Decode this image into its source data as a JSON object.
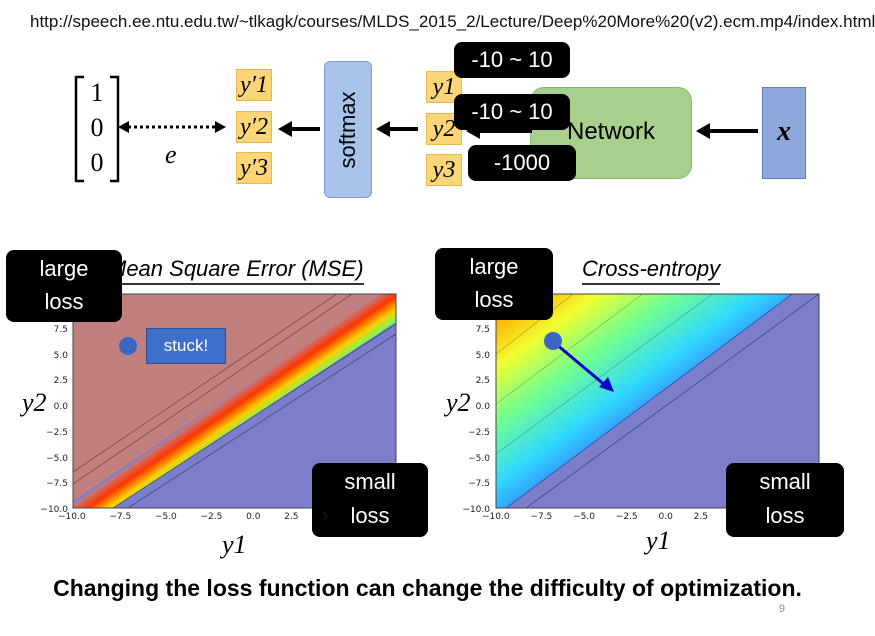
{
  "url": "http://speech.ee.ntu.edu.tw/~tlkagk/courses/MLDS_2015_2/Lecture/Deep%20More%20(v2).ecm.mp4/index.html",
  "diagram": {
    "target_vector": [
      "1",
      "0",
      "0"
    ],
    "error_label": "e",
    "y_prime": [
      "y′1",
      "y′2",
      "y′3"
    ],
    "softmax_label": "softmax",
    "y_outputs": [
      "y1",
      "y2",
      "y3"
    ],
    "network_label": "Network",
    "input_label": "x",
    "range_labels": [
      "-10 ~ 10",
      "-10 ~ 10",
      "-1000"
    ]
  },
  "plots": {
    "mse": {
      "title": "Mean Square Error (MSE)",
      "large_loss_label": [
        "large",
        "loss"
      ],
      "small_loss_label": [
        "small",
        "loss"
      ],
      "stuck_label": "stuck!",
      "y_axis_label": "y2",
      "x_axis_label": "y1",
      "y_ticks": [
        "7.5",
        "5.0",
        "2.5",
        "0.0",
        "−2.5",
        "−5.0",
        "−7.5",
        "−10.0"
      ],
      "x_ticks": [
        "−10.0",
        "−7.5",
        "−5.0",
        "−2.5",
        "0.0",
        "2.5",
        "5"
      ]
    },
    "ce": {
      "title": "Cross-entropy",
      "large_loss_label": [
        "large",
        "loss"
      ],
      "small_loss_label": [
        "small",
        "loss"
      ],
      "y_axis_label": "y2",
      "x_axis_label": "y1",
      "y_ticks": [
        "7.5",
        "5.0",
        "2.5",
        "0.0",
        "−2.5",
        "−5.0",
        "−7.5",
        "−10.0"
      ],
      "x_ticks": [
        "−10.0",
        "−7.5",
        "−5.0",
        "−2.5",
        "0.0",
        "2.5"
      ]
    }
  },
  "caption": "Changing the loss function can change the difficulty of optimization.",
  "page_number": "9",
  "colors": {
    "mse_high": "#c27f80",
    "low_loss": "#7b7fcb",
    "softmax_box": "#a7c3ea",
    "network_box": "#a8d08d",
    "y_box": "#fbd577",
    "input_box": "#8ea8dc"
  }
}
